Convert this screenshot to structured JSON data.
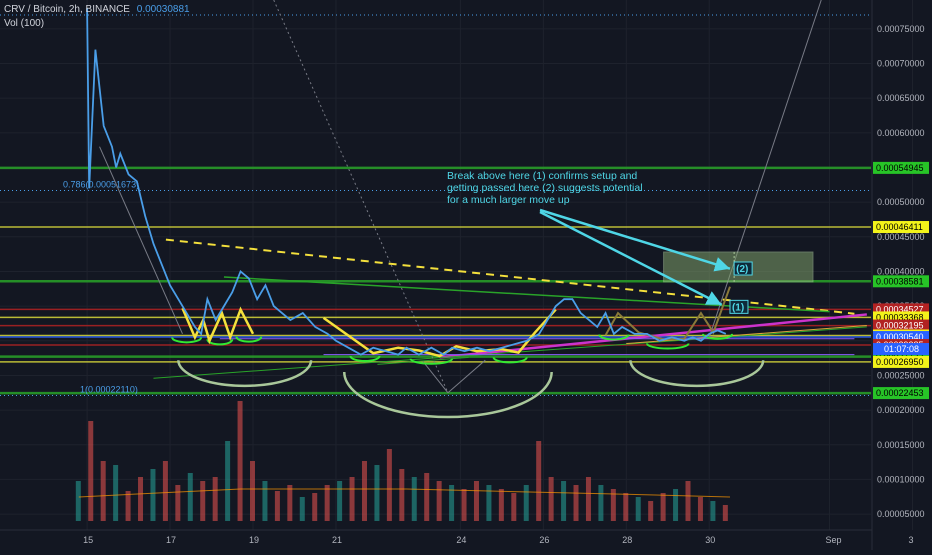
{
  "legend": {
    "symbol": "CRV / Bitcoin, 2h, BINANCE",
    "ohlc_value": "0.00030881",
    "volume": "Vol (100)"
  },
  "annotation": {
    "text": "Break above here (1) confirms setup and getting passed here (2) suggests potential for a much larger move up"
  },
  "chart_data": {
    "type": "line",
    "x_tick_labels": [
      "15",
      "17",
      "19",
      "21",
      "24",
      "26",
      "28",
      "30",
      "Sep",
      "3"
    ],
    "y_ticks": [
      "0.00075000",
      "0.00070000",
      "0.00065000",
      "0.00060000",
      "0.00055000",
      "0.00050000",
      "0.00045000",
      "0.00040000",
      "0.00035000",
      "0.00030000",
      "0.00025000",
      "0.00020000",
      "0.00015000",
      "0.00010000",
      "0.00005000"
    ],
    "price_series": [
      [
        15.3,
        0.00078
      ],
      [
        15.35,
        0.00052
      ],
      [
        15.5,
        0.00072
      ],
      [
        15.7,
        0.00061
      ],
      [
        15.9,
        0.00058
      ],
      [
        16.0,
        0.00055
      ],
      [
        16.1,
        0.00057
      ],
      [
        16.3,
        0.00054
      ],
      [
        16.5,
        0.00053
      ],
      [
        16.7,
        0.00048
      ],
      [
        16.9,
        0.00044
      ],
      [
        17.1,
        0.00041
      ],
      [
        17.3,
        0.00038
      ],
      [
        17.5,
        0.00036
      ],
      [
        17.7,
        0.00034
      ],
      [
        17.9,
        0.00032
      ],
      [
        18.05,
        0.00031
      ],
      [
        18.2,
        0.00036
      ],
      [
        18.4,
        0.00033
      ],
      [
        18.6,
        0.00035
      ],
      [
        18.8,
        0.00037
      ],
      [
        19.0,
        0.0004
      ],
      [
        19.2,
        0.00039
      ],
      [
        19.4,
        0.00036
      ],
      [
        19.6,
        0.00038
      ],
      [
        19.8,
        0.00035
      ],
      [
        20.0,
        0.00034
      ],
      [
        20.2,
        0.00033
      ],
      [
        20.5,
        0.00034
      ],
      [
        20.8,
        0.00032
      ],
      [
        21.1,
        0.00031
      ],
      [
        21.3,
        0.0003
      ],
      [
        21.6,
        0.00029
      ],
      [
        21.9,
        0.00028
      ],
      [
        22.2,
        0.00029
      ],
      [
        22.5,
        0.000285
      ],
      [
        22.8,
        0.00028
      ],
      [
        23.0,
        0.00029
      ],
      [
        23.3,
        0.00028
      ],
      [
        23.6,
        0.00029
      ],
      [
        23.9,
        0.00028
      ],
      [
        24.1,
        0.00029
      ],
      [
        24.4,
        0.000285
      ],
      [
        24.7,
        0.00029
      ],
      [
        25.0,
        0.000285
      ],
      [
        25.3,
        0.00029
      ],
      [
        25.6,
        0.000295
      ],
      [
        25.9,
        0.0003
      ],
      [
        26.2,
        0.00031
      ],
      [
        26.4,
        0.00033
      ],
      [
        26.6,
        0.00035
      ],
      [
        26.8,
        0.00036
      ],
      [
        27.0,
        0.00036
      ],
      [
        27.2,
        0.00034
      ],
      [
        27.4,
        0.00033
      ],
      [
        27.6,
        0.00032
      ],
      [
        27.8,
        0.00034
      ],
      [
        28.0,
        0.00031
      ],
      [
        28.2,
        0.00032
      ],
      [
        28.5,
        0.00031
      ],
      [
        28.8,
        0.00031
      ],
      [
        29.1,
        0.0003
      ],
      [
        29.4,
        0.000305
      ],
      [
        29.7,
        0.0003
      ],
      [
        29.9,
        0.000305
      ],
      [
        30.1,
        0.0003
      ],
      [
        30.3,
        0.00031
      ],
      [
        30.5,
        0.000315
      ],
      [
        30.7,
        0.00031
      ]
    ],
    "volume_series": [
      [
        15.1,
        2e-05
      ],
      [
        15.4,
        5e-05
      ],
      [
        15.7,
        3e-05
      ],
      [
        16.0,
        2.8e-05
      ],
      [
        16.3,
        1.5e-05
      ],
      [
        16.6,
        2.2e-05
      ],
      [
        16.9,
        2.6e-05
      ],
      [
        17.2,
        3e-05
      ],
      [
        17.5,
        1.8e-05
      ],
      [
        17.8,
        2.4e-05
      ],
      [
        18.1,
        2e-05
      ],
      [
        18.4,
        2.2e-05
      ],
      [
        18.7,
        4e-05
      ],
      [
        19.0,
        6e-05
      ],
      [
        19.3,
        3e-05
      ],
      [
        19.6,
        2e-05
      ],
      [
        19.9,
        1.5e-05
      ],
      [
        20.2,
        1.8e-05
      ],
      [
        20.5,
        1.2e-05
      ],
      [
        20.8,
        1.4e-05
      ],
      [
        21.1,
        1.8e-05
      ],
      [
        21.4,
        2e-05
      ],
      [
        21.7,
        2.2e-05
      ],
      [
        22.0,
        3e-05
      ],
      [
        22.3,
        2.8e-05
      ],
      [
        22.6,
        3.6e-05
      ],
      [
        22.9,
        2.6e-05
      ],
      [
        23.2,
        2.2e-05
      ],
      [
        23.5,
        2.4e-05
      ],
      [
        23.8,
        2e-05
      ],
      [
        24.1,
        1.8e-05
      ],
      [
        24.4,
        1.6e-05
      ],
      [
        24.7,
        2e-05
      ],
      [
        25.0,
        1.8e-05
      ],
      [
        25.3,
        1.6e-05
      ],
      [
        25.6,
        1.4e-05
      ],
      [
        25.9,
        1.8e-05
      ],
      [
        26.2,
        4e-05
      ],
      [
        26.5,
        2.2e-05
      ],
      [
        26.8,
        2e-05
      ],
      [
        27.1,
        1.8e-05
      ],
      [
        27.4,
        2.2e-05
      ],
      [
        27.7,
        1.8e-05
      ],
      [
        28.0,
        1.6e-05
      ],
      [
        28.3,
        1.4e-05
      ],
      [
        28.6,
        1.2e-05
      ],
      [
        28.9,
        1e-05
      ],
      [
        29.2,
        1.4e-05
      ],
      [
        29.5,
        1.6e-05
      ],
      [
        29.8,
        2e-05
      ],
      [
        30.1,
        1.2e-05
      ],
      [
        30.4,
        1e-05
      ],
      [
        30.7,
        8e-06
      ]
    ],
    "volume_avg": [
      [
        15.1,
        1.2e-05
      ],
      [
        17.0,
        1.4e-05
      ],
      [
        19.0,
        1.6e-05
      ],
      [
        21.0,
        1.6e-05
      ],
      [
        23.0,
        1.6e-05
      ],
      [
        25.0,
        1.5e-05
      ],
      [
        27.0,
        1.4e-05
      ],
      [
        29.0,
        1.3e-05
      ],
      [
        30.8,
        1.2e-05
      ]
    ],
    "horizontal_levels": [
      {
        "value": 0.00054945,
        "label": "0.00054945",
        "color": "#29a329"
      },
      {
        "value": 0.00046411,
        "label": "0.00046411",
        "color": "#d8d83a"
      },
      {
        "value": 0.00038581,
        "label": "0.00038581",
        "color": "#29a329"
      },
      {
        "value": 0.00034527,
        "label": "0.00034527",
        "color": "#b22222"
      },
      {
        "value": 0.00033368,
        "label": "0.00033368",
        "color": "#d8d83a"
      },
      {
        "value": 0.00032195,
        "label": "0.00032195",
        "color": "#b22222"
      },
      {
        "value": 0.00030765,
        "label": "0.00030765",
        "color": "#d8d83a"
      },
      {
        "value": 0.0003054,
        "label": "0.00030540",
        "color": "#2962ff"
      },
      {
        "value": 0.00029385,
        "label": "0.00029385",
        "color": "#b22222"
      },
      {
        "value": 0.00027722,
        "label": "0.00027722",
        "color": "#29a329"
      },
      {
        "value": 0.0002695,
        "label": "0.00026950",
        "color": "#d8d83a"
      },
      {
        "value": 0.00022453,
        "label": "0.00022453",
        "color": "#29a329"
      }
    ],
    "countdown_label": "01:07:08",
    "fib_levels": [
      {
        "value": 0.00051673,
        "label": "0.786(0.00051673)"
      },
      {
        "value": 0.0002211,
        "label": "1(0.00022110)"
      }
    ],
    "target_labels": [
      "(1)",
      "(2)"
    ],
    "ylim": [
      4e-05,
      0.00077
    ],
    "xlim": [
      13.2,
      34.2
    ]
  },
  "colors": {
    "background": "#131722",
    "price_line": "#4a9ee8",
    "pattern": "#f4e03c",
    "trend": "#cc33cc",
    "arc": "#a9c79a",
    "smile": "#32e832",
    "annotation": "#4fd6e6"
  }
}
